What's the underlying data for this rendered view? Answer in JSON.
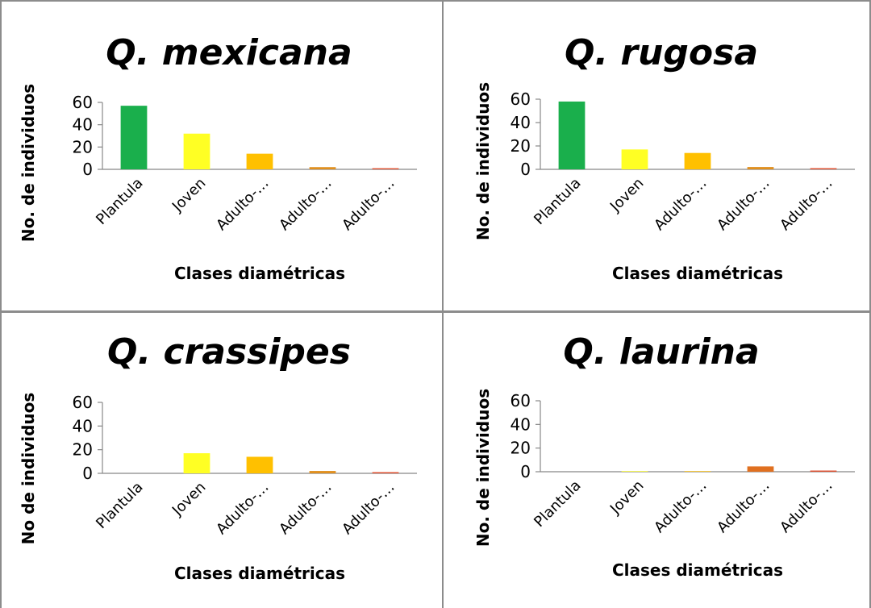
{
  "chart_data": [
    {
      "type": "bar",
      "title": "Q. mexicana",
      "xlabel": "Clases diamétricas",
      "ylabel": "No. de individuos",
      "categories": [
        "Plantula",
        "Joven",
        "Adulto-…",
        "Adulto-…",
        "Adulto-…"
      ],
      "values": [
        57,
        32,
        14,
        2,
        1
      ],
      "colors": [
        "#1aaf4c",
        "#ffff24",
        "#ffc000",
        "#e09020",
        "#e05030"
      ],
      "yticks": [
        0,
        20,
        40,
        60
      ],
      "ylim": [
        0,
        60
      ],
      "grid": false
    },
    {
      "type": "bar",
      "title": "Q. rugosa",
      "xlabel": "Clases diamétricas",
      "ylabel": "No. de individuos",
      "categories": [
        "Plantula",
        "Joven",
        "Adulto-…",
        "Adulto-…",
        "Adulto-…"
      ],
      "values": [
        58,
        17,
        14,
        2,
        1
      ],
      "colors": [
        "#1aaf4c",
        "#ffff24",
        "#ffc000",
        "#e09020",
        "#e05030"
      ],
      "yticks": [
        0,
        20,
        40,
        60
      ],
      "ylim": [
        0,
        60
      ],
      "grid": false
    },
    {
      "type": "bar",
      "title": "Q. crassipes",
      "xlabel": "Clases diamétricas",
      "ylabel": "No de individuos",
      "categories": [
        "Plantula",
        "Joven",
        "Adulto-…",
        "Adulto-…",
        "Adulto-…"
      ],
      "values": [
        0,
        17,
        14,
        2,
        1
      ],
      "colors": [
        "#1aaf4c",
        "#ffff24",
        "#ffc000",
        "#e09020",
        "#e05030"
      ],
      "yticks": [
        0,
        20,
        40,
        60
      ],
      "ylim": [
        0,
        60
      ],
      "grid": false
    },
    {
      "type": "bar",
      "title": "Q. laurina",
      "xlabel": "Clases diamétricas",
      "ylabel": "No. de individuos",
      "categories": [
        "Plantula",
        "Joven",
        "Adulto-…",
        "Adulto-…",
        "Adulto-…"
      ],
      "values": [
        0,
        0.5,
        0.5,
        4.5,
        1
      ],
      "colors": [
        "#1aaf4c",
        "#ffff24",
        "#ffc000",
        "#e07020",
        "#e05030"
      ],
      "yticks": [
        0,
        20,
        40,
        60
      ],
      "ylim": [
        0,
        60
      ],
      "grid": false
    }
  ]
}
